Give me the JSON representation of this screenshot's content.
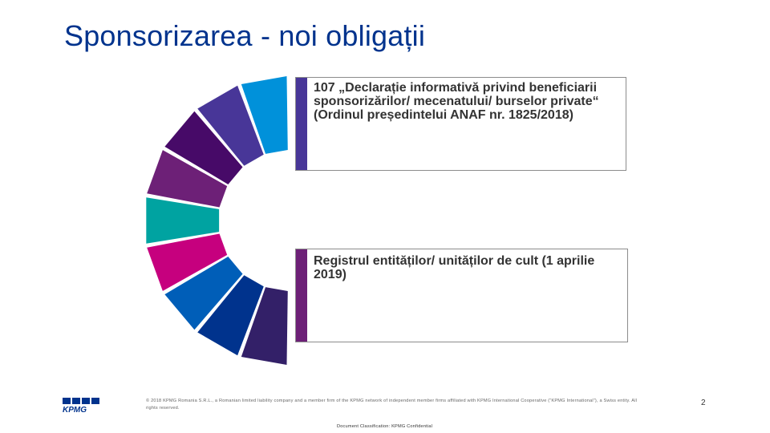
{
  "slide": {
    "title": "Sponsorizarea - noi obligații",
    "boxes": [
      {
        "text": "107 „Declarație informativă privind beneficiarii sponsorizărilor/ mecenatului/ burselor private“ (Ordinul președintelui ANAF nr. 1825/2018)",
        "accent": "#483698"
      },
      {
        "text": "Registrul entităților/ unităților de cult (1 aprilie 2019)",
        "accent": "#6D2077"
      }
    ],
    "ring_colors": [
      "#0091DA",
      "#483698",
      "#470A68",
      "#6D2077",
      "#00A3A1",
      "#C6007E",
      "#005EB8",
      "#00338D",
      "#332068"
    ],
    "footer": "© 2018 KPMG Romania S.R.L., a Romanian limited liability company and a member firm of the KPMG network of independent member firms affiliated with KPMG International Cooperative (“KPMG International”), a Swiss entity. All rights reserved.",
    "page_number": "2",
    "classification": "Document Classification: KPMG Confidential",
    "logo_text": "KPMG",
    "brand_color": "#00338D"
  }
}
